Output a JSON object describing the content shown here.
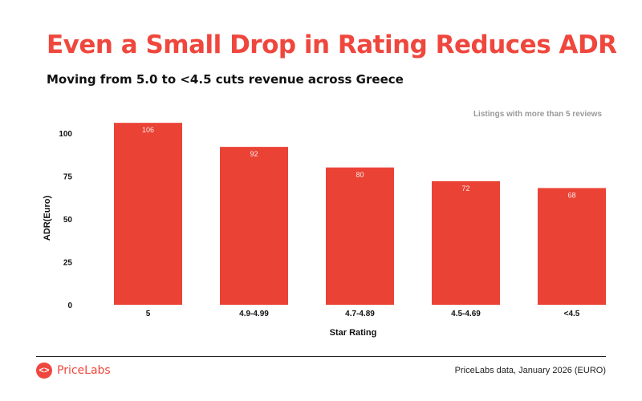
{
  "header": {
    "title": "Even a Small Drop in Rating Reduces ADR",
    "subtitle": "Moving from 5.0 to <4.5 cuts revenue across Greece"
  },
  "chart_data": {
    "type": "bar",
    "categories": [
      "5",
      "4.9-4.99",
      "4.7-4.89",
      "4.5-4.69",
      "<4.5"
    ],
    "values": [
      106,
      92,
      80,
      72,
      68
    ],
    "xlabel": "Star Rating",
    "ylabel": "ADR(Euro)",
    "ylim": [
      0,
      110
    ],
    "yticks": [
      0,
      25,
      50,
      75,
      100
    ],
    "annotation": "Listings with more than 5 reviews",
    "bar_color": "#ea4335",
    "grid": false,
    "data_labels": true
  },
  "footer": {
    "brand": "PriceLabs",
    "source": "PriceLabs data, January 2026 (EURO)",
    "brand_color": "#ef473d"
  }
}
